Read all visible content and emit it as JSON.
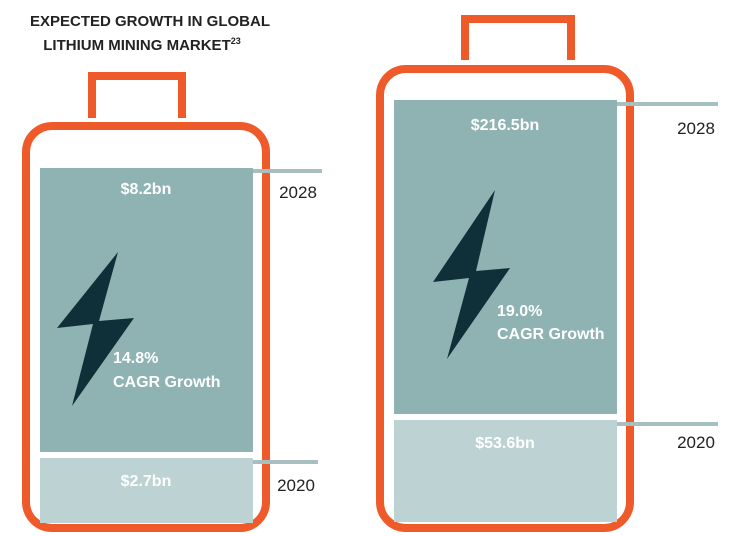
{
  "header": {
    "title_lines": [
      "EXPECTED GROWTH IN GLOBAL",
      "LITHIUM MINING MARKET"
    ],
    "footnote": "23"
  },
  "batteries": [
    {
      "top_value": "$8.2bn",
      "top_year": "2028",
      "bottom_value": "$2.7bn",
      "bottom_year": "2020",
      "cagr": "14.8%",
      "cagr_label": "CAGR Growth"
    },
    {
      "top_value": "$216.5bn",
      "top_year": "2028",
      "bottom_value": "$53.6bn",
      "bottom_year": "2020",
      "cagr": "19.0%",
      "cagr_label": "CAGR Growth"
    }
  ]
}
